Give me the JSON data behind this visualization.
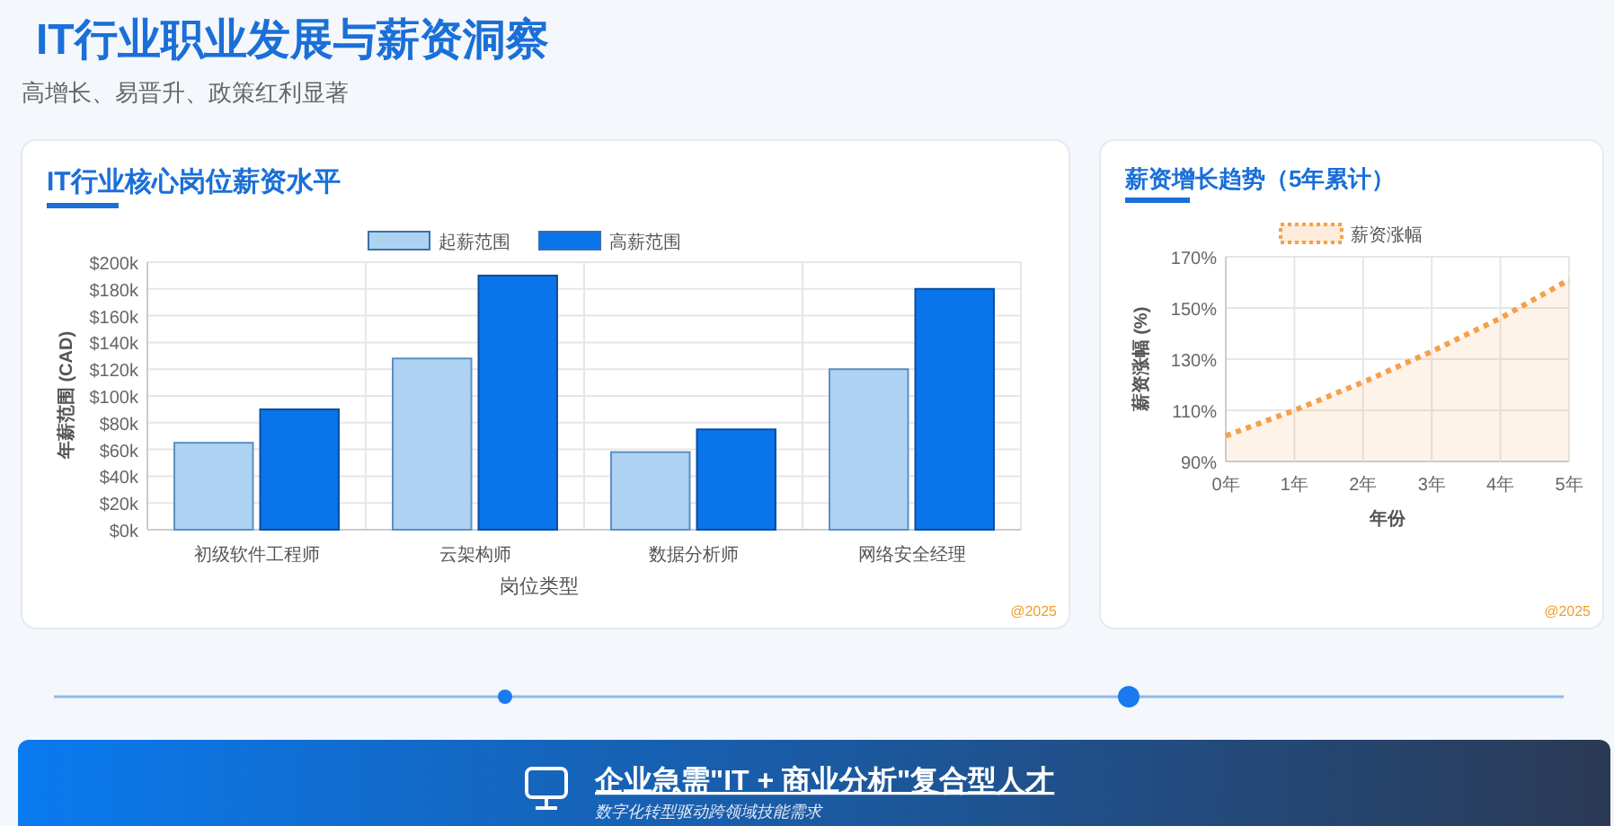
{
  "chart_data": [
    {
      "type": "other",
      "title": "IT行业职业发展与薪资洞察",
      "subtitle": "高增长、易晋升、政策红利显著"
    },
    {
      "type": "bar",
      "title": "IT行业核心岗位薪资水平",
      "xlabel": "岗位类型",
      "ylabel": "年薪范围 (CAD)",
      "categories": [
        "初级软件工程师",
        "云架构师",
        "数据分析师",
        "网络安全经理"
      ],
      "series": [
        {
          "name": "起薪范围",
          "color": "#aed3f2",
          "values": [
            65,
            128,
            58,
            120
          ]
        },
        {
          "name": "高薪范围",
          "color": "#0a74ea",
          "values": [
            90,
            190,
            75,
            180
          ]
        }
      ],
      "ylim": [
        0,
        200
      ],
      "yticks": [
        {
          "value": 0,
          "label": "$0k"
        },
        {
          "value": 20,
          "label": "$20k"
        },
        {
          "value": 40,
          "label": "$40k"
        },
        {
          "value": 60,
          "label": "$60k"
        },
        {
          "value": 80,
          "label": "$80k"
        },
        {
          "value": 100,
          "label": "$100k"
        },
        {
          "value": 120,
          "label": "$120k"
        },
        {
          "value": 140,
          "label": "$140k"
        },
        {
          "value": 160,
          "label": "$160k"
        },
        {
          "value": 180,
          "label": "$180k"
        },
        {
          "value": 200,
          "label": "$200k"
        }
      ],
      "grid": true,
      "legend": "top",
      "annotations": [
        "@2025"
      ]
    },
    {
      "type": "area",
      "title": "薪资增长趋势（5年累计）",
      "xlabel": "年份",
      "ylabel": "薪资涨幅 (%)",
      "categories": [
        "0年",
        "1年",
        "2年",
        "3年",
        "4年",
        "5年"
      ],
      "series": [
        {
          "name": "薪资涨幅",
          "color": "#f5a04a",
          "values": [
            100,
            110,
            121,
            133,
            146,
            161
          ]
        }
      ],
      "line_style": "dotted",
      "ylim": [
        90,
        170
      ],
      "yticks": [
        {
          "value": 90,
          "label": "90%"
        },
        {
          "value": 110,
          "label": "110%"
        },
        {
          "value": 130,
          "label": "130%"
        },
        {
          "value": 150,
          "label": "150%"
        },
        {
          "value": 170,
          "label": "170%"
        }
      ],
      "grid": true,
      "legend": "top",
      "annotations": [
        "@2025"
      ]
    },
    {
      "type": "other",
      "title": "企业急需\"IT + 商业分析\"复合型人才",
      "subtitle": "数字化转型驱动跨领域技能需求"
    }
  ]
}
